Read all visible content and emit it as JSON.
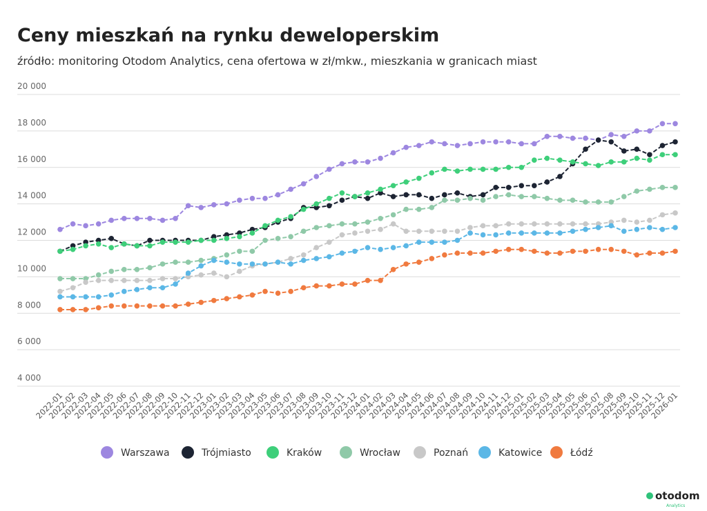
{
  "chart_data": {
    "type": "line",
    "title": "Ceny mieszkań na rynku deweloperskim",
    "subtitle": "źródło: monitoring Otodom Analytics, cena ofertowa w zł/mkw., mieszkania w granicach miast",
    "logo": "otodom",
    "logo_sub": "Analytics",
    "categories": [
      "2022-01",
      "2022-02",
      "2022-03",
      "2022-04",
      "2022-05",
      "2022-06",
      "2022-07",
      "2022-08",
      "2022-09",
      "2022-10",
      "2022-11",
      "2022-12",
      "2023-01",
      "2023-02",
      "2023-03",
      "2023-04",
      "2023-05",
      "2023-06",
      "2023-07",
      "2023-08",
      "2023-09",
      "2023-10",
      "2023-11",
      "2023-12",
      "2024-01",
      "2024-02",
      "2024-03",
      "2024-04",
      "2024-05",
      "2024-06",
      "2024-07",
      "2024-08",
      "2024-09",
      "2024-10",
      "2024-11",
      "2024-12",
      "2025-01",
      "2025-02",
      "2025-03",
      "2025-04",
      "2025-05",
      "2025-06",
      "2025-07",
      "2025-08",
      "2025-09",
      "2025-10",
      "2025-11",
      "2025-12",
      "2026-01"
    ],
    "ylim": [
      4000,
      20000
    ],
    "yticks": [
      {
        "value": 4000,
        "label": "4 000"
      },
      {
        "value": 6000,
        "label": "6 000"
      },
      {
        "value": 8000,
        "label": "8 000"
      },
      {
        "value": 10000,
        "label": "10 000"
      },
      {
        "value": 12000,
        "label": "12 000"
      },
      {
        "value": 14000,
        "label": "14 000"
      },
      {
        "value": 16000,
        "label": "16 000"
      },
      {
        "value": 18000,
        "label": "18 000"
      },
      {
        "value": 20000,
        "label": "20 000"
      }
    ],
    "grid": true,
    "legend": "bottom",
    "series": [
      {
        "name": "Warszawa",
        "color": "#9d87e0",
        "values": [
          12600,
          12900,
          12800,
          12900,
          13100,
          13200,
          13200,
          13200,
          13100,
          13200,
          13900,
          13800,
          13950,
          14000,
          14200,
          14300,
          14300,
          14500,
          14800,
          15100,
          15500,
          15900,
          16200,
          16300,
          16300,
          16500,
          16800,
          17100,
          17200,
          17400,
          17300,
          17200,
          17300,
          17400,
          17400,
          17400,
          17300,
          17300,
          17700,
          17700,
          17600,
          17600,
          17500,
          17800,
          17700,
          18000,
          18000,
          18400,
          18400
        ]
      },
      {
        "name": "Trójmiasto",
        "color": "#1d2433",
        "values": [
          11400,
          11700,
          11900,
          12000,
          12100,
          11800,
          11700,
          12000,
          12000,
          12000,
          12000,
          12000,
          12200,
          12300,
          12400,
          12600,
          12700,
          13000,
          13200,
          13800,
          13800,
          13900,
          14200,
          14400,
          14300,
          14600,
          14400,
          14500,
          14500,
          14300,
          14500,
          14600,
          14400,
          14500,
          14900,
          14900,
          15000,
          15000,
          15200,
          15500,
          16200,
          17000,
          17500,
          17400,
          16900,
          17000,
          16700,
          17200,
          17400
        ]
      },
      {
        "name": "Kraków",
        "color": "#3ecf7a",
        "values": [
          11400,
          11500,
          11700,
          11800,
          11600,
          11800,
          11700,
          11700,
          11900,
          11900,
          11900,
          12000,
          12000,
          12100,
          12200,
          12400,
          12800,
          13100,
          13300,
          13700,
          14000,
          14300,
          14600,
          14400,
          14600,
          14800,
          15000,
          15200,
          15400,
          15700,
          15900,
          15800,
          15900,
          15900,
          15900,
          16000,
          16000,
          16400,
          16500,
          16400,
          16300,
          16200,
          16100,
          16300,
          16300,
          16500,
          16400,
          16700,
          16700
        ]
      },
      {
        "name": "Wrocław",
        "color": "#8fc9a8",
        "values": [
          9900,
          9900,
          9900,
          10100,
          10300,
          10400,
          10400,
          10500,
          10700,
          10800,
          10800,
          10900,
          11000,
          11200,
          11400,
          11400,
          12000,
          12100,
          12200,
          12500,
          12700,
          12800,
          12900,
          12900,
          13000,
          13200,
          13400,
          13700,
          13700,
          13800,
          14200,
          14200,
          14300,
          14200,
          14400,
          14500,
          14400,
          14400,
          14300,
          14200,
          14200,
          14100,
          14100,
          14100,
          14400,
          14700,
          14800,
          14900,
          14900
        ]
      },
      {
        "name": "Poznań",
        "color": "#c8c8c8",
        "values": [
          9200,
          9400,
          9700,
          9800,
          9800,
          9800,
          9800,
          9800,
          9900,
          9900,
          10000,
          10100,
          10200,
          10000,
          10300,
          10600,
          10700,
          10800,
          11000,
          11200,
          11600,
          11900,
          12300,
          12400,
          12500,
          12600,
          12900,
          12500,
          12500,
          12500,
          12500,
          12500,
          12700,
          12800,
          12800,
          12900,
          12900,
          12900,
          12900,
          12900,
          12900,
          12900,
          12900,
          13000,
          13100,
          13000,
          13100,
          13400,
          13500
        ]
      },
      {
        "name": "Katowice",
        "color": "#5bb7e6",
        "values": [
          8900,
          8900,
          8900,
          8900,
          9000,
          9200,
          9300,
          9400,
          9400,
          9600,
          10200,
          10600,
          10900,
          10800,
          10700,
          10700,
          10700,
          10800,
          10700,
          10900,
          11000,
          11100,
          11300,
          11400,
          11600,
          11500,
          11600,
          11700,
          11900,
          11900,
          11900,
          12000,
          12400,
          12300,
          12300,
          12400,
          12400,
          12400,
          12400,
          12400,
          12500,
          12600,
          12700,
          12800,
          12500,
          12600,
          12700,
          12600,
          12700
        ]
      },
      {
        "name": "Łódź",
        "color": "#f07a3f",
        "values": [
          8200,
          8200,
          8200,
          8300,
          8400,
          8400,
          8400,
          8400,
          8400,
          8400,
          8500,
          8600,
          8700,
          8800,
          8900,
          9000,
          9200,
          9100,
          9200,
          9400,
          9500,
          9500,
          9600,
          9600,
          9800,
          9800,
          10400,
          10700,
          10800,
          11000,
          11200,
          11300,
          11300,
          11300,
          11400,
          11500,
          11500,
          11400,
          11300,
          11300,
          11400,
          11400,
          11500,
          11500,
          11400,
          11200,
          11300,
          11300,
          11400
        ]
      }
    ]
  }
}
